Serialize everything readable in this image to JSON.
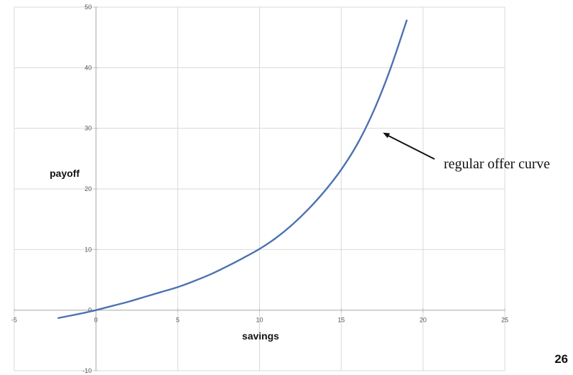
{
  "chart_data": {
    "type": "line",
    "xlabel": "savings",
    "ylabel": "payoff",
    "xlim": [
      -5,
      25
    ],
    "ylim": [
      -10,
      50
    ],
    "x_ticks": [
      -5,
      0,
      5,
      10,
      15,
      20,
      25
    ],
    "y_ticks": [
      -10,
      0,
      10,
      20,
      30,
      40,
      50
    ],
    "grid": true,
    "series": [
      {
        "color": "#4a72b0",
        "x": [
          -2.3,
          -1,
          0,
          1,
          2,
          3,
          4,
          5,
          6,
          7,
          8,
          9,
          10,
          11,
          12,
          13,
          14,
          15,
          16,
          17,
          18,
          19
        ],
        "y": [
          -1.3,
          -0.6,
          0,
          0.7,
          1.4,
          2.2,
          3.0,
          3.8,
          4.8,
          5.9,
          7.2,
          8.6,
          10.1,
          11.9,
          14.1,
          16.7,
          19.7,
          23.2,
          27.5,
          33.0,
          39.8,
          47.8
        ]
      }
    ],
    "annotations": [
      {
        "text": "regular offer curve",
        "arrow_to": [
          17.5,
          29.4
        ]
      }
    ]
  },
  "slide": {
    "page_number": "26"
  },
  "colors": {
    "line": "#4a72b0",
    "grid": "#d9d9d9",
    "axis": "#bfbfbf",
    "text": "#111111"
  }
}
